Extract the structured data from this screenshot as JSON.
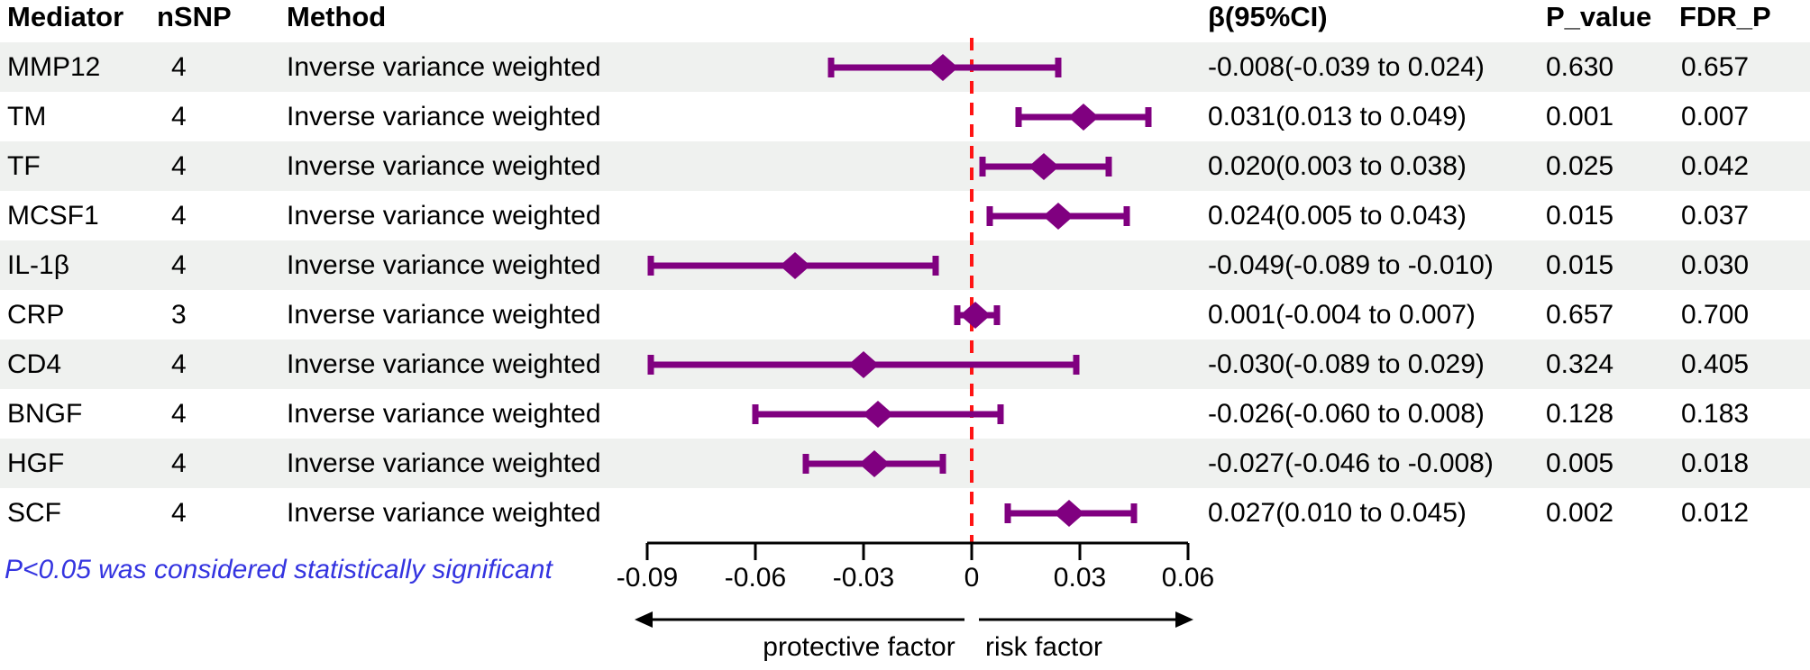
{
  "table": {
    "headers": {
      "mediator": "Mediator",
      "nsnp": "nSNP",
      "method": "Method",
      "beta_ci": "β(95%CI)",
      "p_value": "P_value",
      "fdr_p": "FDR_P"
    },
    "rows": [
      {
        "mediator": "MMP12",
        "nsnp": "4",
        "method": "Inverse variance weighted",
        "beta_ci": "-0.008(-0.039 to 0.024)",
        "p_value": "0.630",
        "fdr_p": "0.657"
      },
      {
        "mediator": "TM",
        "nsnp": "4",
        "method": "Inverse variance weighted",
        "beta_ci": "0.031(0.013 to 0.049)",
        "p_value": "0.001",
        "fdr_p": "0.007"
      },
      {
        "mediator": "TF",
        "nsnp": "4",
        "method": "Inverse variance weighted",
        "beta_ci": "0.020(0.003 to 0.038)",
        "p_value": "0.025",
        "fdr_p": "0.042"
      },
      {
        "mediator": "MCSF1",
        "nsnp": "4",
        "method": "Inverse variance weighted",
        "beta_ci": "0.024(0.005 to 0.043)",
        "p_value": "0.015",
        "fdr_p": "0.037"
      },
      {
        "mediator": "IL-1β",
        "nsnp": "4",
        "method": "Inverse variance weighted",
        "beta_ci": "-0.049(-0.089 to -0.010)",
        "p_value": "0.015",
        "fdr_p": "0.030"
      },
      {
        "mediator": "CRP",
        "nsnp": "3",
        "method": "Inverse variance weighted",
        "beta_ci": "0.001(-0.004 to 0.007)",
        "p_value": "0.657",
        "fdr_p": "0.700"
      },
      {
        "mediator": "CD4",
        "nsnp": "4",
        "method": "Inverse variance weighted",
        "beta_ci": "-0.030(-0.089 to 0.029)",
        "p_value": "0.324",
        "fdr_p": "0.405"
      },
      {
        "mediator": "BNGF",
        "nsnp": "4",
        "method": "Inverse variance weighted",
        "beta_ci": "-0.026(-0.060 to 0.008)",
        "p_value": "0.128",
        "fdr_p": "0.183"
      },
      {
        "mediator": "HGF",
        "nsnp": "4",
        "method": "Inverse variance weighted",
        "beta_ci": "-0.027(-0.046 to -0.008)",
        "p_value": "0.005",
        "fdr_p": "0.018"
      },
      {
        "mediator": "SCF",
        "nsnp": "4",
        "method": "Inverse variance weighted",
        "beta_ci": "0.027(0.010 to 0.045)",
        "p_value": "0.002",
        "fdr_p": "0.012"
      }
    ]
  },
  "note": "P<0.05 was considered statistically significant",
  "chart_data": {
    "type": "scatter",
    "variant": "forest-plot",
    "series": [
      {
        "name": "MMP12",
        "beta": -0.008,
        "ci_low": -0.039,
        "ci_high": 0.024
      },
      {
        "name": "TM",
        "beta": 0.031,
        "ci_low": 0.013,
        "ci_high": 0.049
      },
      {
        "name": "TF",
        "beta": 0.02,
        "ci_low": 0.003,
        "ci_high": 0.038
      },
      {
        "name": "MCSF1",
        "beta": 0.024,
        "ci_low": 0.005,
        "ci_high": 0.043
      },
      {
        "name": "IL-1β",
        "beta": -0.049,
        "ci_low": -0.089,
        "ci_high": -0.01
      },
      {
        "name": "CRP",
        "beta": 0.001,
        "ci_low": -0.004,
        "ci_high": 0.007
      },
      {
        "name": "CD4",
        "beta": -0.03,
        "ci_low": -0.089,
        "ci_high": 0.029
      },
      {
        "name": "BNGF",
        "beta": -0.026,
        "ci_low": -0.06,
        "ci_high": 0.008
      },
      {
        "name": "HGF",
        "beta": -0.027,
        "ci_low": -0.046,
        "ci_high": -0.008
      },
      {
        "name": "SCF",
        "beta": 0.027,
        "ci_low": 0.01,
        "ci_high": 0.045
      }
    ],
    "xlim": [
      -0.09,
      0.06
    ],
    "x_ticks": [
      -0.09,
      -0.06,
      -0.03,
      0,
      0.03,
      0.06
    ],
    "x_tick_labels": [
      "-0.09",
      "-0.06",
      "-0.03",
      "0",
      "0.03",
      "0.06"
    ],
    "reference_line_x": 0,
    "grid": false,
    "legend": "none",
    "arrow_left_label": "protective factor",
    "arrow_right_label": "risk factor"
  },
  "colors": {
    "marker": "#800080",
    "reference_line": "#ff1414",
    "stripe": "#eff1ef",
    "note_text": "#3434e0",
    "axis": "#000000",
    "text": "#000000"
  }
}
